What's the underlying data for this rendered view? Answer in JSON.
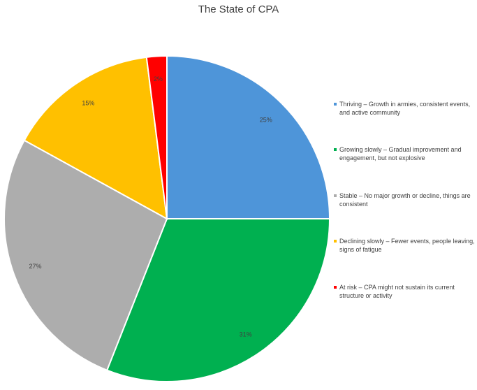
{
  "chart_data": {
    "type": "pie",
    "title": "The State of CPA",
    "start_angle_deg": 0,
    "direction": "clockwise",
    "legend_position": "right",
    "slices": [
      {
        "label": "Thriving – Growth in armies, consistent events, and active community",
        "value": 25,
        "display": "25%",
        "color": "#4E95D9"
      },
      {
        "label": "Growing slowly – Gradual improvement and engagement, but not explosive",
        "value": 31,
        "display": "31%",
        "color": "#00B050"
      },
      {
        "label": "Stable – No major growth or decline, things are consistent",
        "value": 27,
        "display": "27%",
        "color": "#ADADAD"
      },
      {
        "label": "Declining slowly – Fewer events, people leaving, signs of fatigue",
        "value": 15,
        "display": "15%",
        "color": "#FFC000"
      },
      {
        "label": "At risk – CPA might not sustain its current structure or activity",
        "value": 2,
        "display": "2%",
        "color": "#FF0000"
      }
    ]
  }
}
